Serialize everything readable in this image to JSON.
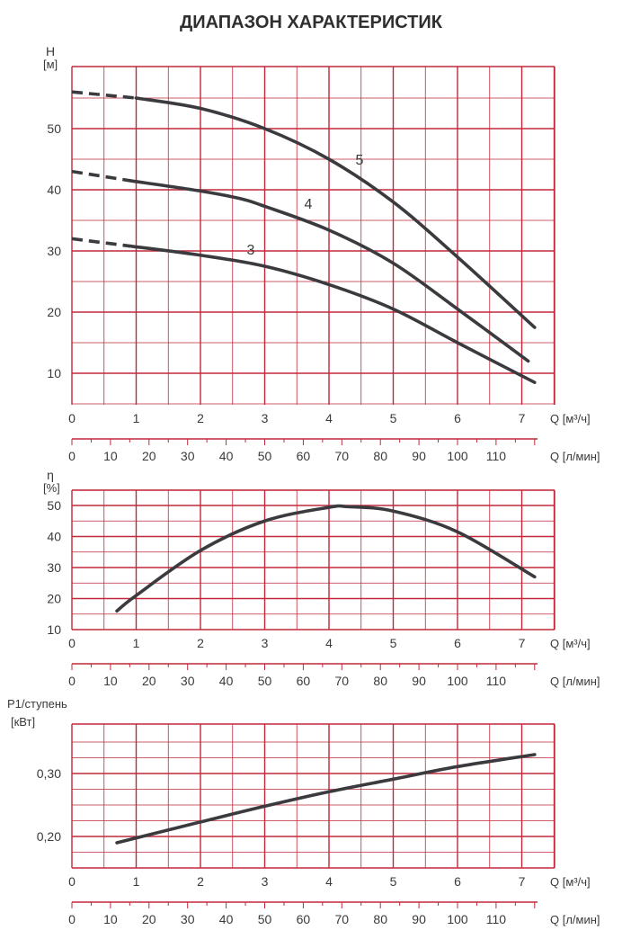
{
  "title": "ДИАПАЗОН ХАРАКТЕРИСТИК",
  "colors": {
    "grid": "#c0283a",
    "curve": "#3b3b3f",
    "text": "#3a3a3a"
  },
  "x_axis": {
    "label_m3h": "Q [м³/ч]",
    "label_lmin": "Q [л/мин]",
    "ticks_m3h": [
      "0",
      "1",
      "2",
      "3",
      "4",
      "5",
      "6",
      "7"
    ],
    "ticks_lmin": [
      "0",
      "10",
      "20",
      "30",
      "40",
      "50",
      "60",
      "70",
      "80",
      "90",
      "100",
      "110"
    ]
  },
  "chart_data": [
    {
      "type": "line",
      "ylabel": "H",
      "yunit": "[м]",
      "xlim": [
        0,
        7.5
      ],
      "ylim": [
        0,
        55
      ],
      "yticks": [
        "10",
        "20",
        "30",
        "40",
        "50"
      ],
      "grid": true,
      "series": [
        {
          "name": "5",
          "dashed_x": [
            0,
            1.0
          ],
          "dashed_y": [
            56,
            55
          ],
          "x": [
            1.0,
            2.0,
            3.0,
            4.0,
            5.0,
            6.0,
            7.2
          ],
          "y": [
            55,
            53.3,
            50,
            45,
            38,
            29,
            17.5
          ]
        },
        {
          "name": "4",
          "dashed_x": [
            0,
            0.9
          ],
          "dashed_y": [
            43,
            41.5
          ],
          "x": [
            0.9,
            2.0,
            2.6,
            3.0,
            4.0,
            5.0,
            6.0,
            7.1
          ],
          "y": [
            41.5,
            39.8,
            38.6,
            37.3,
            33.4,
            28,
            20.5,
            12
          ]
        },
        {
          "name": "3",
          "dashed_x": [
            0,
            0.9
          ],
          "dashed_y": [
            32,
            30.8
          ],
          "x": [
            0.9,
            2.0,
            3.0,
            4.0,
            5.0,
            6.0,
            7.2
          ],
          "y": [
            30.8,
            29.3,
            27.5,
            24.5,
            20.5,
            15,
            8.5
          ]
        }
      ]
    },
    {
      "type": "line",
      "ylabel": "η",
      "yunit": "[%]",
      "xlim": [
        0,
        7.5
      ],
      "ylim": [
        10,
        50
      ],
      "yticks": [
        "10",
        "20",
        "30",
        "40",
        "50"
      ],
      "grid": true,
      "series": [
        {
          "x": [
            0.7,
            1.0,
            2.0,
            3.0,
            4.0,
            4.3,
            5.0,
            6.0,
            7.2
          ],
          "y": [
            16,
            21,
            35.5,
            45,
            49.4,
            49.6,
            48.2,
            41.5,
            27
          ]
        }
      ]
    },
    {
      "type": "line",
      "ylabel": "P1/ступень",
      "yunit": "[кВт]",
      "xlim": [
        0,
        7.5
      ],
      "ylim": [
        0.18,
        0.33
      ],
      "yticks": [
        "0,20",
        "0,30"
      ],
      "grid": true,
      "series": [
        {
          "x": [
            0.7,
            2.0,
            3.0,
            4.0,
            5.0,
            6.0,
            7.2
          ],
          "y": [
            0.19,
            0.223,
            0.248,
            0.271,
            0.291,
            0.311,
            0.33
          ]
        }
      ]
    }
  ]
}
